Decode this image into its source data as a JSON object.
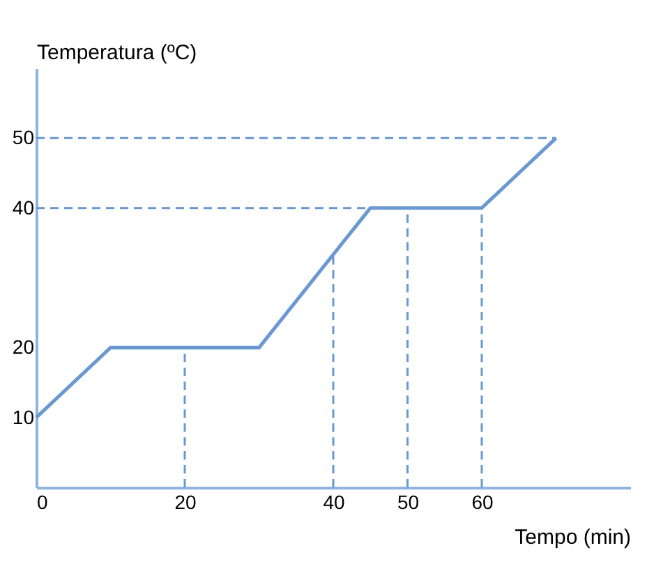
{
  "chart_data": {
    "type": "line",
    "xlabel": "Tempo (min)",
    "ylabel": "Temperatura (ºC)",
    "x": [
      0,
      10,
      30,
      45,
      60,
      70
    ],
    "series": [
      {
        "color": "#6a98d0",
        "values": [
          10,
          20,
          20,
          40,
          40,
          50
        ]
      }
    ],
    "xlim": [
      0,
      80
    ],
    "ylim": [
      0,
      60
    ],
    "xticks": [
      0,
      20,
      40,
      50,
      60
    ],
    "yticks": [
      10,
      20,
      40,
      50
    ],
    "ref_lines": [
      {
        "axis": "x",
        "value": 20,
        "line_style": "dashed"
      },
      {
        "axis": "x",
        "value": 40,
        "line_style": "dashed"
      },
      {
        "axis": "x",
        "value": 50,
        "line_style": "dashed"
      },
      {
        "axis": "x",
        "value": 60,
        "line_style": "dashed"
      },
      {
        "axis": "y",
        "value": 40,
        "line_style": "dashed"
      },
      {
        "axis": "y",
        "value": 50,
        "line_style": "dashed"
      }
    ],
    "grid": false,
    "marker": "none",
    "line_style": "solid"
  }
}
